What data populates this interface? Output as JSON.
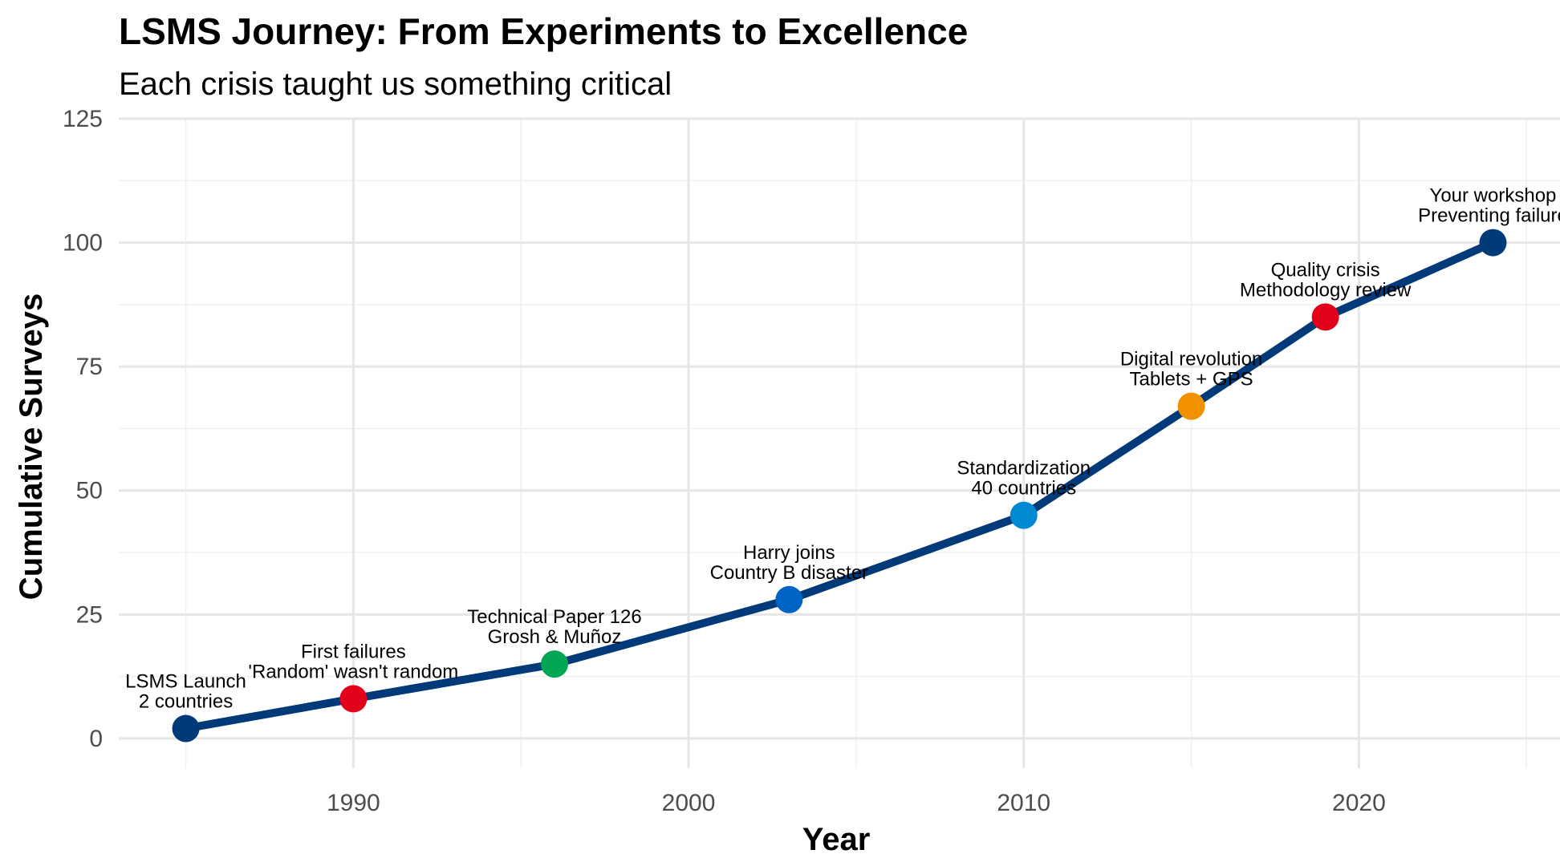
{
  "chart_data": {
    "type": "line",
    "title": "LSMS Journey: From Experiments to Excellence",
    "subtitle": "Each crisis taught us something critical",
    "xlabel": "Year",
    "ylabel": "Cumulative Surveys",
    "xlim": [
      1983,
      2026
    ],
    "ylim": [
      -6,
      125
    ],
    "xticks": [
      1990,
      2000,
      2010,
      2020
    ],
    "xtick_labels": [
      "1990",
      "2000",
      "2010",
      "2020"
    ],
    "yticks": [
      0,
      25,
      50,
      75,
      100,
      125
    ],
    "ytick_labels": [
      "0",
      "25",
      "50",
      "75",
      "100",
      "125"
    ],
    "grid": true,
    "line_color": "#003a78",
    "series": [
      {
        "x": [
          1985,
          1990,
          1996,
          2003,
          2010,
          2015,
          2019,
          2024
        ],
        "y": [
          2,
          8,
          15,
          28,
          45,
          67,
          85,
          100
        ]
      }
    ],
    "points": [
      {
        "x": 1985,
        "y": 2,
        "color": "#003a78",
        "label": [
          "LSMS Launch",
          "2 countries"
        ]
      },
      {
        "x": 1990,
        "y": 8,
        "color": "#e3001b",
        "label": [
          "First failures",
          "'Random' wasn't random"
        ]
      },
      {
        "x": 1996,
        "y": 15,
        "color": "#00a651",
        "label": [
          "Technical Paper 126",
          "Grosh & Muñoz"
        ]
      },
      {
        "x": 2003,
        "y": 28,
        "color": "#0063c6",
        "label": [
          "Harry joins",
          "Country B disaster"
        ]
      },
      {
        "x": 2010,
        "y": 45,
        "color": "#0088d1",
        "label": [
          "Standardization",
          "40 countries"
        ]
      },
      {
        "x": 2015,
        "y": 67,
        "color": "#f29100",
        "label": [
          "Digital revolution",
          "Tablets + GPS"
        ]
      },
      {
        "x": 2019,
        "y": 85,
        "color": "#e3001b",
        "label": [
          "Quality crisis",
          "Methodology review"
        ]
      },
      {
        "x": 2024,
        "y": 100,
        "color": "#003a78",
        "label": [
          "Your workshop",
          "Preventing failure"
        ]
      }
    ]
  }
}
